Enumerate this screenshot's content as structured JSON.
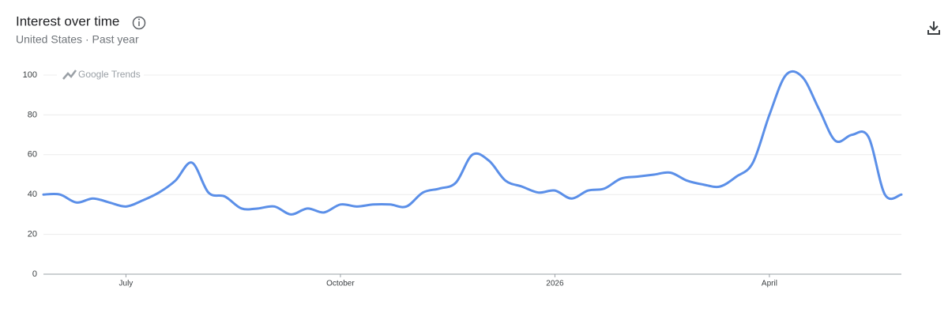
{
  "chart_data": {
    "type": "line",
    "title": "Interest over time",
    "subtitle": "United States · Past year",
    "watermark": "Google Trends",
    "categories": [
      null,
      null,
      null,
      null,
      null,
      "July",
      null,
      null,
      null,
      null,
      null,
      null,
      null,
      null,
      null,
      null,
      null,
      null,
      "October",
      null,
      null,
      null,
      null,
      null,
      null,
      null,
      null,
      null,
      null,
      null,
      null,
      "2026",
      null,
      null,
      null,
      null,
      null,
      null,
      null,
      null,
      null,
      null,
      null,
      null,
      "April",
      null,
      null,
      null,
      null,
      null,
      null,
      null,
      null
    ],
    "series": [
      {
        "color": "#5b8fe8",
        "values": [
          40,
          40,
          36,
          38,
          36,
          34,
          37,
          41,
          47,
          56,
          41,
          39,
          33,
          33,
          34,
          30,
          33,
          31,
          35,
          34,
          35,
          35,
          34,
          41,
          43,
          46,
          60,
          57,
          47,
          44,
          41,
          42,
          38,
          42,
          43,
          48,
          49,
          50,
          51,
          47,
          45,
          44,
          49,
          56,
          80,
          100,
          99,
          83,
          67,
          70,
          69,
          40,
          40
        ]
      }
    ],
    "ylim": [
      0,
      100
    ],
    "yticks": [
      0,
      20,
      40,
      60,
      80,
      100
    ],
    "grid": true
  }
}
